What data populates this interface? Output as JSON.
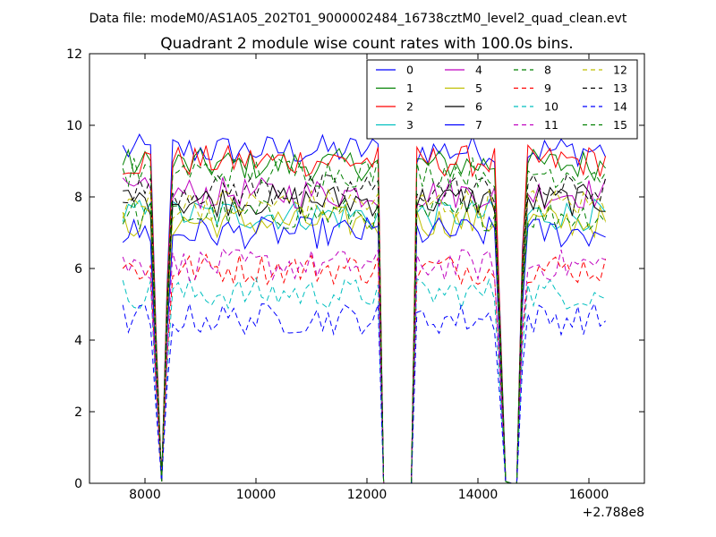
{
  "page": {
    "suptitle": "Data file: modeM0/AS1A05_202T01_9000002484_16738cztM0_level2_quad_clean.evt"
  },
  "chart_data": {
    "type": "line",
    "title": "Quadrant 2 module wise count rates with 100.0s bins.",
    "xlabel": "",
    "ylabel": "",
    "xlim": [
      7000,
      17000
    ],
    "ylim": [
      0,
      12
    ],
    "x_offset_label": "+2.788e8",
    "x_ticks": [
      8000,
      10000,
      12000,
      14000,
      16000
    ],
    "x_tick_labels": [
      "8000",
      "10000",
      "12000",
      "14000",
      "16000"
    ],
    "y_ticks": [
      0,
      2,
      4,
      6,
      8,
      10,
      12
    ],
    "y_tick_labels": [
      "0",
      "2",
      "4",
      "6",
      "8",
      "10",
      "12"
    ],
    "grid": false,
    "legend": {
      "placement": "top-right",
      "columns": 4
    },
    "x": [
      7600,
      7700,
      7800,
      7900,
      8000,
      8100,
      8200,
      8300,
      8400,
      8500,
      8600,
      8700,
      8800,
      8900,
      9000,
      9100,
      9200,
      9300,
      9400,
      9500,
      9600,
      9700,
      9800,
      9900,
      10000,
      10100,
      10200,
      10300,
      10400,
      10500,
      10600,
      10700,
      10800,
      10900,
      11000,
      11100,
      11200,
      11300,
      11400,
      11500,
      11600,
      11700,
      11800,
      11900,
      12000,
      12100,
      12200,
      12300,
      12400,
      12500,
      12600,
      12700,
      12800,
      12900,
      13000,
      13100,
      13200,
      13300,
      13400,
      13500,
      13600,
      13700,
      13800,
      13900,
      14000,
      14100,
      14200,
      14300,
      14400,
      14500,
      14600,
      14700,
      14800,
      14900,
      15000,
      15100,
      15200,
      15300,
      15400,
      15500,
      15600,
      15700,
      15800,
      15900,
      16000,
      16100,
      16200,
      16300
    ],
    "active_segments": [
      [
        0,
        46
      ],
      [
        53,
        69
      ],
      [
        72,
        87
      ]
    ],
    "series": [
      {
        "name": "0",
        "color": "#0000ff",
        "dash": "solid",
        "level": 9.3
      },
      {
        "name": "1",
        "color": "#008000",
        "dash": "solid",
        "level": 8.9
      },
      {
        "name": "2",
        "color": "#ff0000",
        "dash": "solid",
        "level": 9.0
      },
      {
        "name": "3",
        "color": "#00bfbf",
        "dash": "solid",
        "level": 7.5
      },
      {
        "name": "4",
        "color": "#bf00bf",
        "dash": "solid",
        "level": 8.1
      },
      {
        "name": "5",
        "color": "#bfbf00",
        "dash": "solid",
        "level": 7.3
      },
      {
        "name": "6",
        "color": "#000000",
        "dash": "solid",
        "level": 7.9
      },
      {
        "name": "7",
        "color": "#0000ff",
        "dash": "solid",
        "level": 7.0
      },
      {
        "name": "8",
        "color": "#008000",
        "dash": "dashed",
        "level": 7.5
      },
      {
        "name": "9",
        "color": "#ff0000",
        "dash": "dashed",
        "level": 6.0
      },
      {
        "name": "10",
        "color": "#00bfbf",
        "dash": "dashed",
        "level": 5.3
      },
      {
        "name": "11",
        "color": "#bf00bf",
        "dash": "dashed",
        "level": 6.1
      },
      {
        "name": "12",
        "color": "#bfbf00",
        "dash": "dashed",
        "level": 7.8
      },
      {
        "name": "13",
        "color": "#000000",
        "dash": "dashed",
        "level": 8.2
      },
      {
        "name": "14",
        "color": "#0000ff",
        "dash": "dashed",
        "level": 4.6
      },
      {
        "name": "15",
        "color": "#008000",
        "dash": "dashed",
        "level": 8.7
      }
    ]
  }
}
